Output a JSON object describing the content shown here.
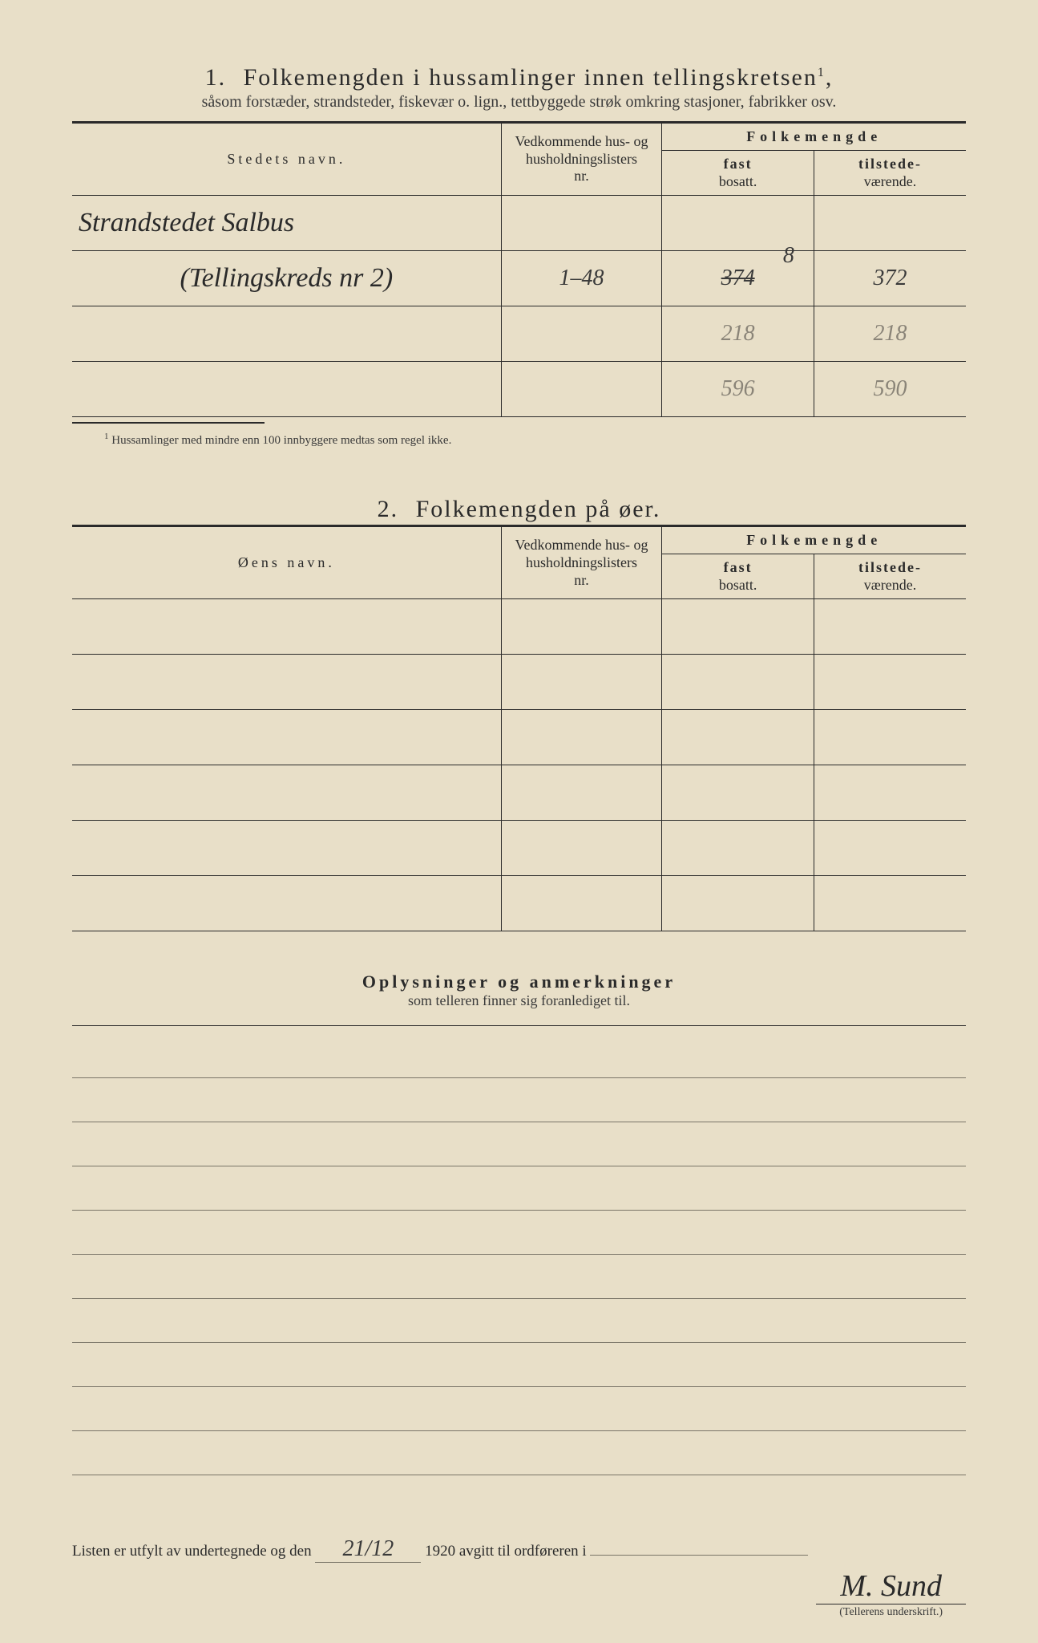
{
  "section1": {
    "number": "1.",
    "title": "Folkemengden i hussamlinger innen tellingskretsen",
    "title_sup": "1",
    "subtitle": "såsom forstæder, strandsteder, fiskevær o. lign., tettbyggede strøk omkring stasjoner, fabrikker osv.",
    "headers": {
      "name": "Stedets navn.",
      "nr_l1": "Vedkommende hus- og",
      "nr_l2": "husholdningslisters",
      "nr_l3": "nr.",
      "pop": "Folkemengde",
      "fast_l1": "fast",
      "fast_l2": "bosatt.",
      "til_l1": "tilstede-",
      "til_l2": "værende."
    },
    "rows": [
      {
        "name": "Strandstedet Salbus",
        "nr": "",
        "fast": "",
        "til": ""
      },
      {
        "name": "(Tellingskreds nr 2)",
        "nr": "1–48",
        "fast": "374",
        "fast_corr": "8",
        "til": "372"
      },
      {
        "name": "",
        "nr": "",
        "fast": "218",
        "til": "218"
      },
      {
        "name": "",
        "nr": "",
        "fast": "596",
        "til": "590"
      }
    ],
    "footnote_sup": "1",
    "footnote": "Hussamlinger med mindre enn 100 innbyggere medtas som regel ikke."
  },
  "section2": {
    "number": "2.",
    "title": "Folkemengden på øer.",
    "headers": {
      "name": "Øens navn.",
      "nr_l1": "Vedkommende hus- og",
      "nr_l2": "husholdningslisters",
      "nr_l3": "nr.",
      "pop": "Folkemengde",
      "fast_l1": "fast",
      "fast_l2": "bosatt.",
      "til_l1": "tilstede-",
      "til_l2": "værende."
    },
    "row_count": 6
  },
  "section3": {
    "title": "Oplysninger og anmerkninger",
    "subtitle": "som telleren finner sig foranlediget til.",
    "line_count": 10
  },
  "footer": {
    "prefix": "Listen er utfylt av undertegnede og den",
    "date": "21/12",
    "year": "1920",
    "suffix": "avgitt til ordføreren i",
    "ordforer": ""
  },
  "signature": {
    "text": "M. Sund",
    "label": "(Tellerens underskrift.)"
  },
  "colors": {
    "paper": "#e8dfc8",
    "ink": "#2a2a2a",
    "pencil": "#8a8478",
    "rule": "#7a7568"
  }
}
